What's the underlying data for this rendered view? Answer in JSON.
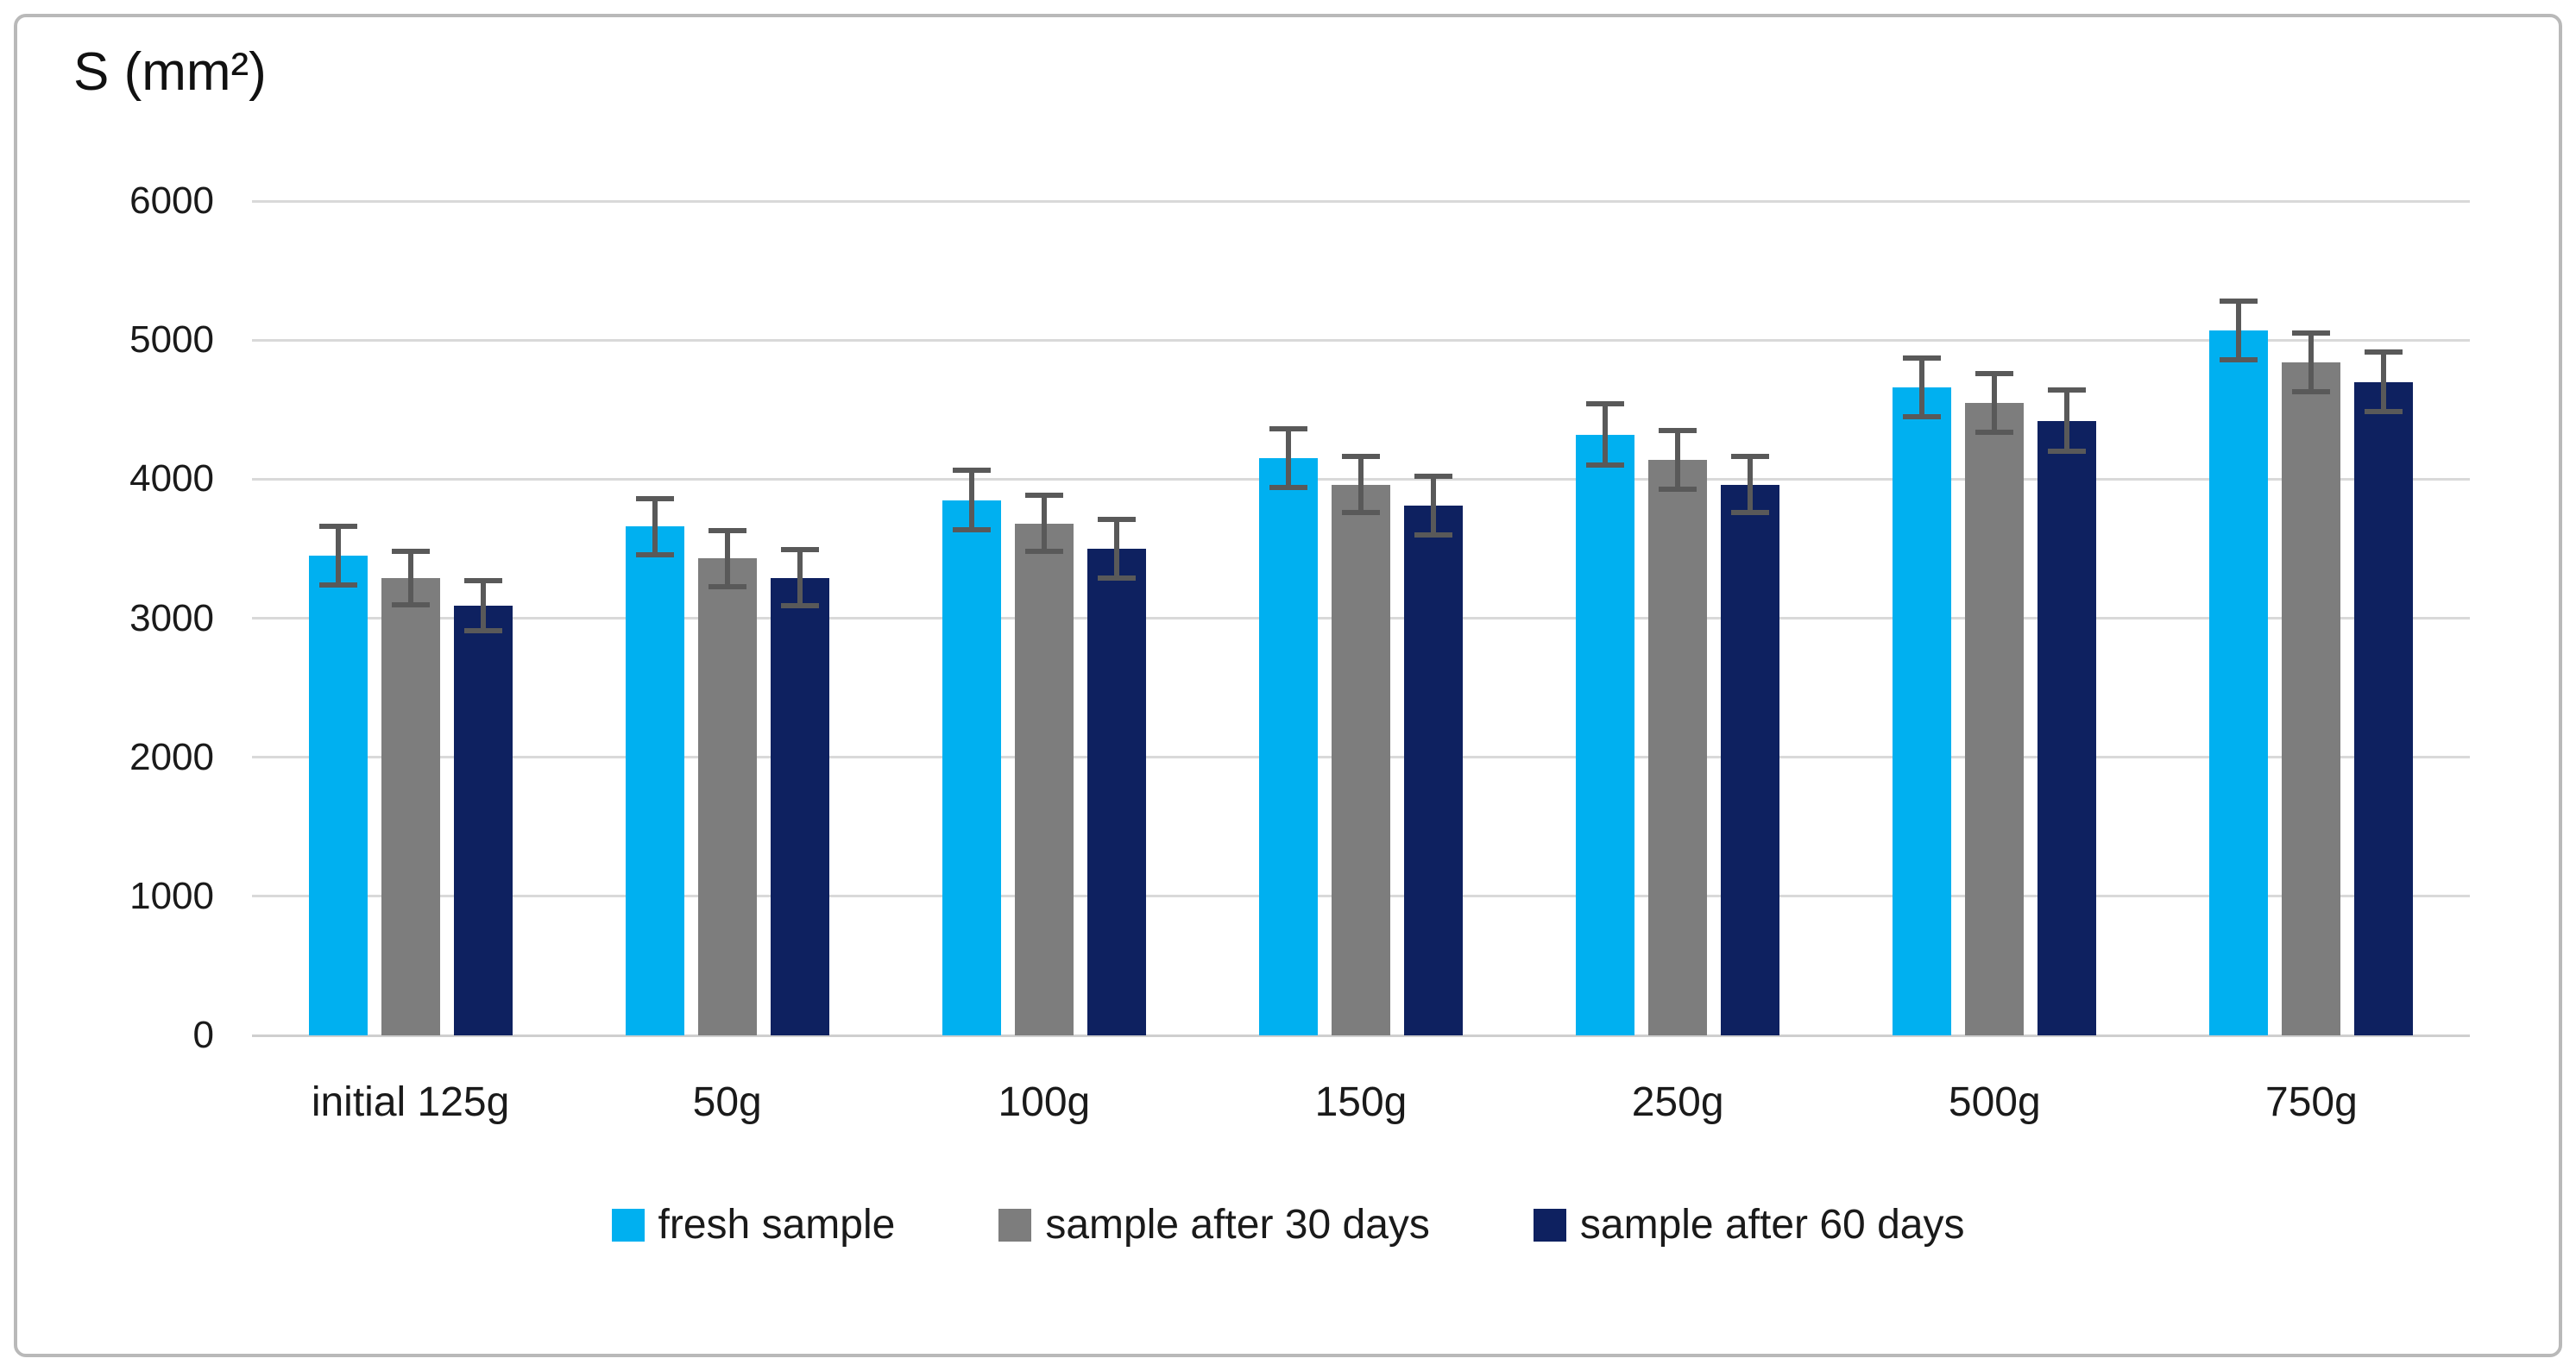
{
  "chart_data": {
    "type": "bar",
    "title": "S (mm²)",
    "xlabel": "",
    "ylabel": "S (mm²)",
    "categories": [
      "initial 125g",
      "50g",
      "100g",
      "150g",
      "250g",
      "500g",
      "750g"
    ],
    "series": [
      {
        "name": "fresh sample",
        "color": "#00b0f0",
        "values": [
          3450,
          3660,
          3850,
          4150,
          4320,
          4660,
          5070
        ],
        "errors": [
          230,
          220,
          230,
          230,
          240,
          230,
          230
        ]
      },
      {
        "name": "sample after 30 days",
        "color": "#7d7d7d",
        "values": [
          3290,
          3430,
          3680,
          3960,
          4140,
          4550,
          4840
        ],
        "errors": [
          210,
          220,
          220,
          220,
          230,
          230,
          230
        ]
      },
      {
        "name": "sample after 60 days",
        "color": "#0e2160",
        "values": [
          3090,
          3290,
          3500,
          3810,
          3960,
          4420,
          4700
        ],
        "errors": [
          200,
          220,
          230,
          230,
          220,
          240,
          230
        ]
      }
    ],
    "ylim": [
      0,
      6000
    ],
    "yticks": [
      0,
      1000,
      2000,
      3000,
      4000,
      5000,
      6000
    ],
    "grid": "horizontal-only",
    "legend_position": "bottom",
    "error_bars": true,
    "error_bar_color": "#595959",
    "gridline_color": "#d9d9d9",
    "axis_text_color": "#1a1a1a",
    "frame_color": "#b9b9b9",
    "background_color": "#ffffff"
  }
}
